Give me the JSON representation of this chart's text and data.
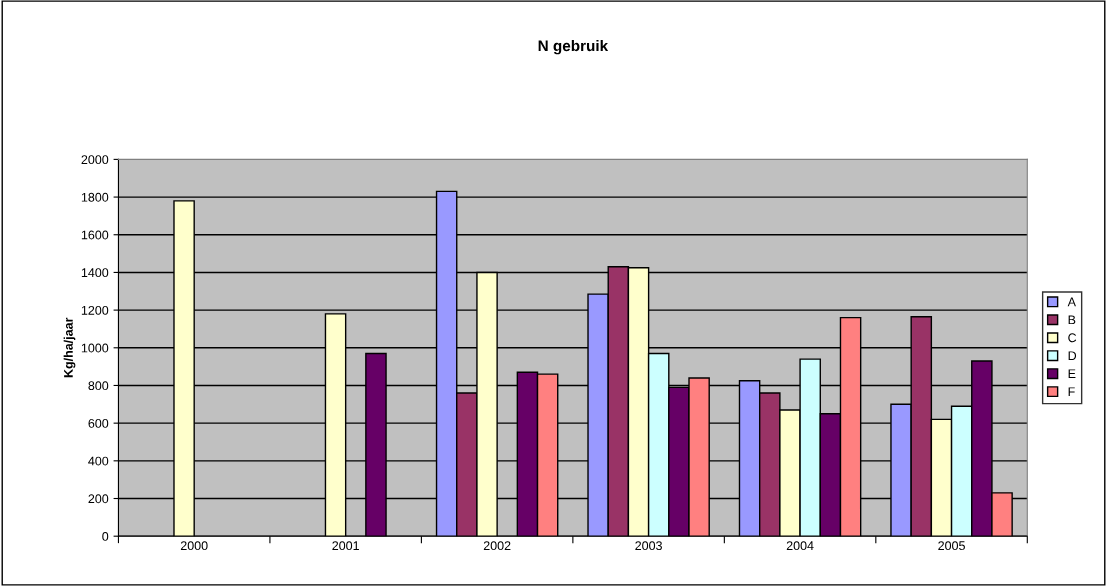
{
  "chart_data": {
    "type": "bar",
    "title": "N gebruik",
    "ylabel": "Kg/ha/jaar",
    "categories": [
      "2000",
      "2001",
      "2002",
      "2003",
      "2004",
      "2005"
    ],
    "series": [
      {
        "name": "A",
        "color": "#9999ff",
        "values": [
          null,
          null,
          1830,
          1285,
          825,
          700
        ]
      },
      {
        "name": "B",
        "color": "#993366",
        "values": [
          null,
          null,
          760,
          1430,
          760,
          1165
        ]
      },
      {
        "name": "C",
        "color": "#ffffcc",
        "values": [
          1780,
          1180,
          1400,
          1425,
          670,
          620
        ]
      },
      {
        "name": "D",
        "color": "#ccffff",
        "values": [
          null,
          null,
          null,
          970,
          940,
          690
        ]
      },
      {
        "name": "E",
        "color": "#660066",
        "values": [
          null,
          970,
          870,
          790,
          650,
          930
        ]
      },
      {
        "name": "F",
        "color": "#ff8080",
        "values": [
          null,
          null,
          860,
          840,
          1160,
          230
        ]
      }
    ],
    "ylim": [
      0,
      2000
    ],
    "yticks": [
      0,
      200,
      400,
      600,
      800,
      1000,
      1200,
      1400,
      1600,
      1800,
      2000
    ],
    "grid": "y",
    "legend": "right"
  }
}
